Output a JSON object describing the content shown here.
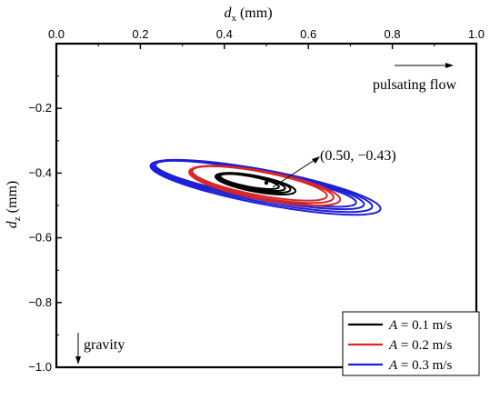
{
  "chart_data": {
    "type": "line",
    "xlabel": "d",
    "xlabel_sub": "x",
    "xlabel_unit": " (mm)",
    "ylabel": "d",
    "ylabel_sub": "z",
    "ylabel_unit": " (mm)",
    "x_axis_position": "top",
    "xlim": [
      0.0,
      1.0
    ],
    "ylim": [
      -1.0,
      0.0
    ],
    "x_ticks": [
      "0.0",
      "0.2",
      "0.4",
      "0.6",
      "0.8",
      "1.0"
    ],
    "y_ticks": [
      "−0.2",
      "−0.4",
      "−0.6",
      "−0.8",
      "−1.0"
    ],
    "grid": false,
    "legend_position": "bottom-right",
    "series": [
      {
        "name": "A = 0.1 m/s",
        "legend_var": "A",
        "legend_rest": " = 0.1 m/s",
        "color": "#000000",
        "center": [
          0.47,
          -0.43
        ],
        "orbits": [
          {
            "a": 0.09,
            "b": 0.022,
            "tilt_deg": -14,
            "dx": 0.0,
            "dz": 0.0
          },
          {
            "a": 0.082,
            "b": 0.019,
            "tilt_deg": -14,
            "dx": -0.005,
            "dz": 0.002
          },
          {
            "a": 0.098,
            "b": 0.024,
            "tilt_deg": -14,
            "dx": 0.004,
            "dz": -0.003
          },
          {
            "a": 0.072,
            "b": 0.016,
            "tilt_deg": -14,
            "dx": -0.01,
            "dz": 0.004
          }
        ]
      },
      {
        "name": "A = 0.2 m/s",
        "legend_var": "A",
        "legend_rest": " = 0.2 m/s",
        "color": "#d62728",
        "center": [
          0.49,
          -0.435
        ],
        "orbits": [
          {
            "a": 0.175,
            "b": 0.04,
            "tilt_deg": -14,
            "dx": 0.0,
            "dz": 0.0
          },
          {
            "a": 0.165,
            "b": 0.036,
            "tilt_deg": -14,
            "dx": -0.006,
            "dz": 0.003
          },
          {
            "a": 0.185,
            "b": 0.043,
            "tilt_deg": -14,
            "dx": 0.006,
            "dz": -0.004
          }
        ]
      },
      {
        "name": "A = 0.3 m/s",
        "legend_var": "A",
        "legend_rest": " = 0.3 m/s",
        "color": "#1f1fd6",
        "center": [
          0.49,
          -0.44
        ],
        "orbits": [
          {
            "a": 0.27,
            "b": 0.048,
            "tilt_deg": -14,
            "dx": 0.0,
            "dz": 0.0
          },
          {
            "a": 0.258,
            "b": 0.044,
            "tilt_deg": -14,
            "dx": -0.008,
            "dz": 0.004
          },
          {
            "a": 0.282,
            "b": 0.052,
            "tilt_deg": -14,
            "dx": 0.008,
            "dz": -0.004
          },
          {
            "a": 0.246,
            "b": 0.04,
            "tilt_deg": -14,
            "dx": -0.015,
            "dz": 0.007
          }
        ]
      }
    ],
    "center_point": [
      0.5,
      -0.43
    ],
    "annotations": {
      "center_label": "(0.50, −0.43)",
      "flow_label": "pulsating flow",
      "gravity_label": "gravity"
    }
  }
}
